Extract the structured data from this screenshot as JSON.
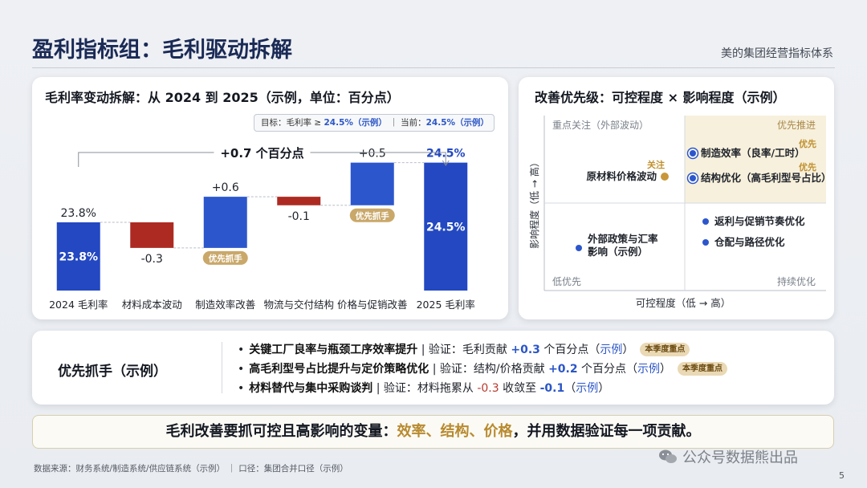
{
  "header": {
    "title": "盈利指标组：毛利驱动拆解",
    "right_label": "美的集团经营指标体系"
  },
  "waterfall": {
    "title": "毛利率变动拆解：从 2024 到 2025（示例，单位：百分点）",
    "target": {
      "prefix": "目标：毛利率 ≥ ",
      "target_value": "24.5%（示例）",
      "mid": " ｜ 当前：",
      "current_value": "24.5%（示例）"
    },
    "delta_label": "+0.7 个百分点",
    "badge_label": "优先抓手"
  },
  "chart_data": [
    {
      "type": "bar",
      "subtype": "waterfall",
      "categories": [
        "2024 毛利率",
        "材料成本波动",
        "制造效率改善",
        "物流与交付结构",
        "价格与促销改善",
        "2025 毛利率"
      ],
      "values": [
        23.8,
        -0.3,
        0.6,
        -0.1,
        0.5,
        24.5
      ],
      "kinds": [
        "total",
        "delta",
        "delta",
        "delta",
        "delta",
        "total"
      ],
      "value_labels": [
        "23.8%",
        "-0.3",
        "+0.6",
        "-0.1",
        "+0.5",
        "24.5%"
      ],
      "inner_labels": [
        "23.8%",
        "",
        "",
        "",
        "",
        "24.5%"
      ],
      "highlighted": [
        "制造效率改善",
        "价格与促销改善"
      ],
      "colors": {
        "total": "#2348c2",
        "positive": "#2c56cc",
        "negative": "#ad2a22"
      },
      "title": "毛利率变动拆解：从 2024 到 2025（示例，单位：百分点）"
    },
    {
      "type": "scatter",
      "subtype": "priority-matrix",
      "title": "改善优先级：可控程度 × 影响程度（示例）",
      "xlabel": "可控程度（低 → 高）",
      "ylabel": "影响程度（低 → 高）",
      "quadrants": {
        "top_left": "重点关注（外部波动）",
        "top_right": "优先推进",
        "bottom_left": "低优先",
        "bottom_right": "持续优化"
      },
      "points": [
        {
          "label": "原材料价格波动",
          "quadrant": "top_left",
          "tag": "关注",
          "style": "gold"
        },
        {
          "label": "制造效率（良率/工时）",
          "quadrant": "top_right",
          "tag": "优先",
          "style": "ring"
        },
        {
          "label": "结构优化（高毛利型号占比）",
          "quadrant": "top_right",
          "tag": "优先",
          "style": "ring"
        },
        {
          "label": "返利与促销节奏优化",
          "quadrant": "bottom_right",
          "tag": "",
          "style": "blue"
        },
        {
          "label": "仓配与路径优化",
          "quadrant": "bottom_right",
          "tag": "",
          "style": "blue"
        },
        {
          "label": "外部政策与汇率影响（示例）",
          "quadrant": "bottom_left",
          "tag": "",
          "style": "blue"
        }
      ]
    }
  ],
  "priorities": {
    "label": "优先抓手（示例）",
    "items": [
      {
        "title": "关键工厂良率与瓶颈工序效率提升",
        "text": " | 验证：毛利贡献 ",
        "num": "+0.3",
        "unit": " 个百分点（",
        "example": "示例",
        "close": "）",
        "tag": "本季度重点"
      },
      {
        "title": "高毛利型号占比提升与定价策略优化",
        "text": " | 验证：结构/价格贡献 ",
        "num": "+0.2",
        "unit": " 个百分点（",
        "example": "示例",
        "close": "）",
        "tag": "本季度重点"
      },
      {
        "title": "材料替代与集中采购谈判",
        "text": " | 验证：材料拖累从 ",
        "num_from": "-0.3",
        "mid": " 收敛至 ",
        "num": "-0.1",
        "unit": "（",
        "example": "示例",
        "close": "）",
        "tag": ""
      }
    ]
  },
  "banner": {
    "prefix": "毛利改善要抓可控且高影响的变量：",
    "highlight": "效率、结构、价格",
    "suffix": "，并用数据验证每一项贡献。"
  },
  "footer": {
    "source": "数据来源：财务系统/制造系统/供应链系统（示例） ｜ 口径：集团合并口径（示例）",
    "watermark": "公众号数据熊出品",
    "page": "5"
  }
}
